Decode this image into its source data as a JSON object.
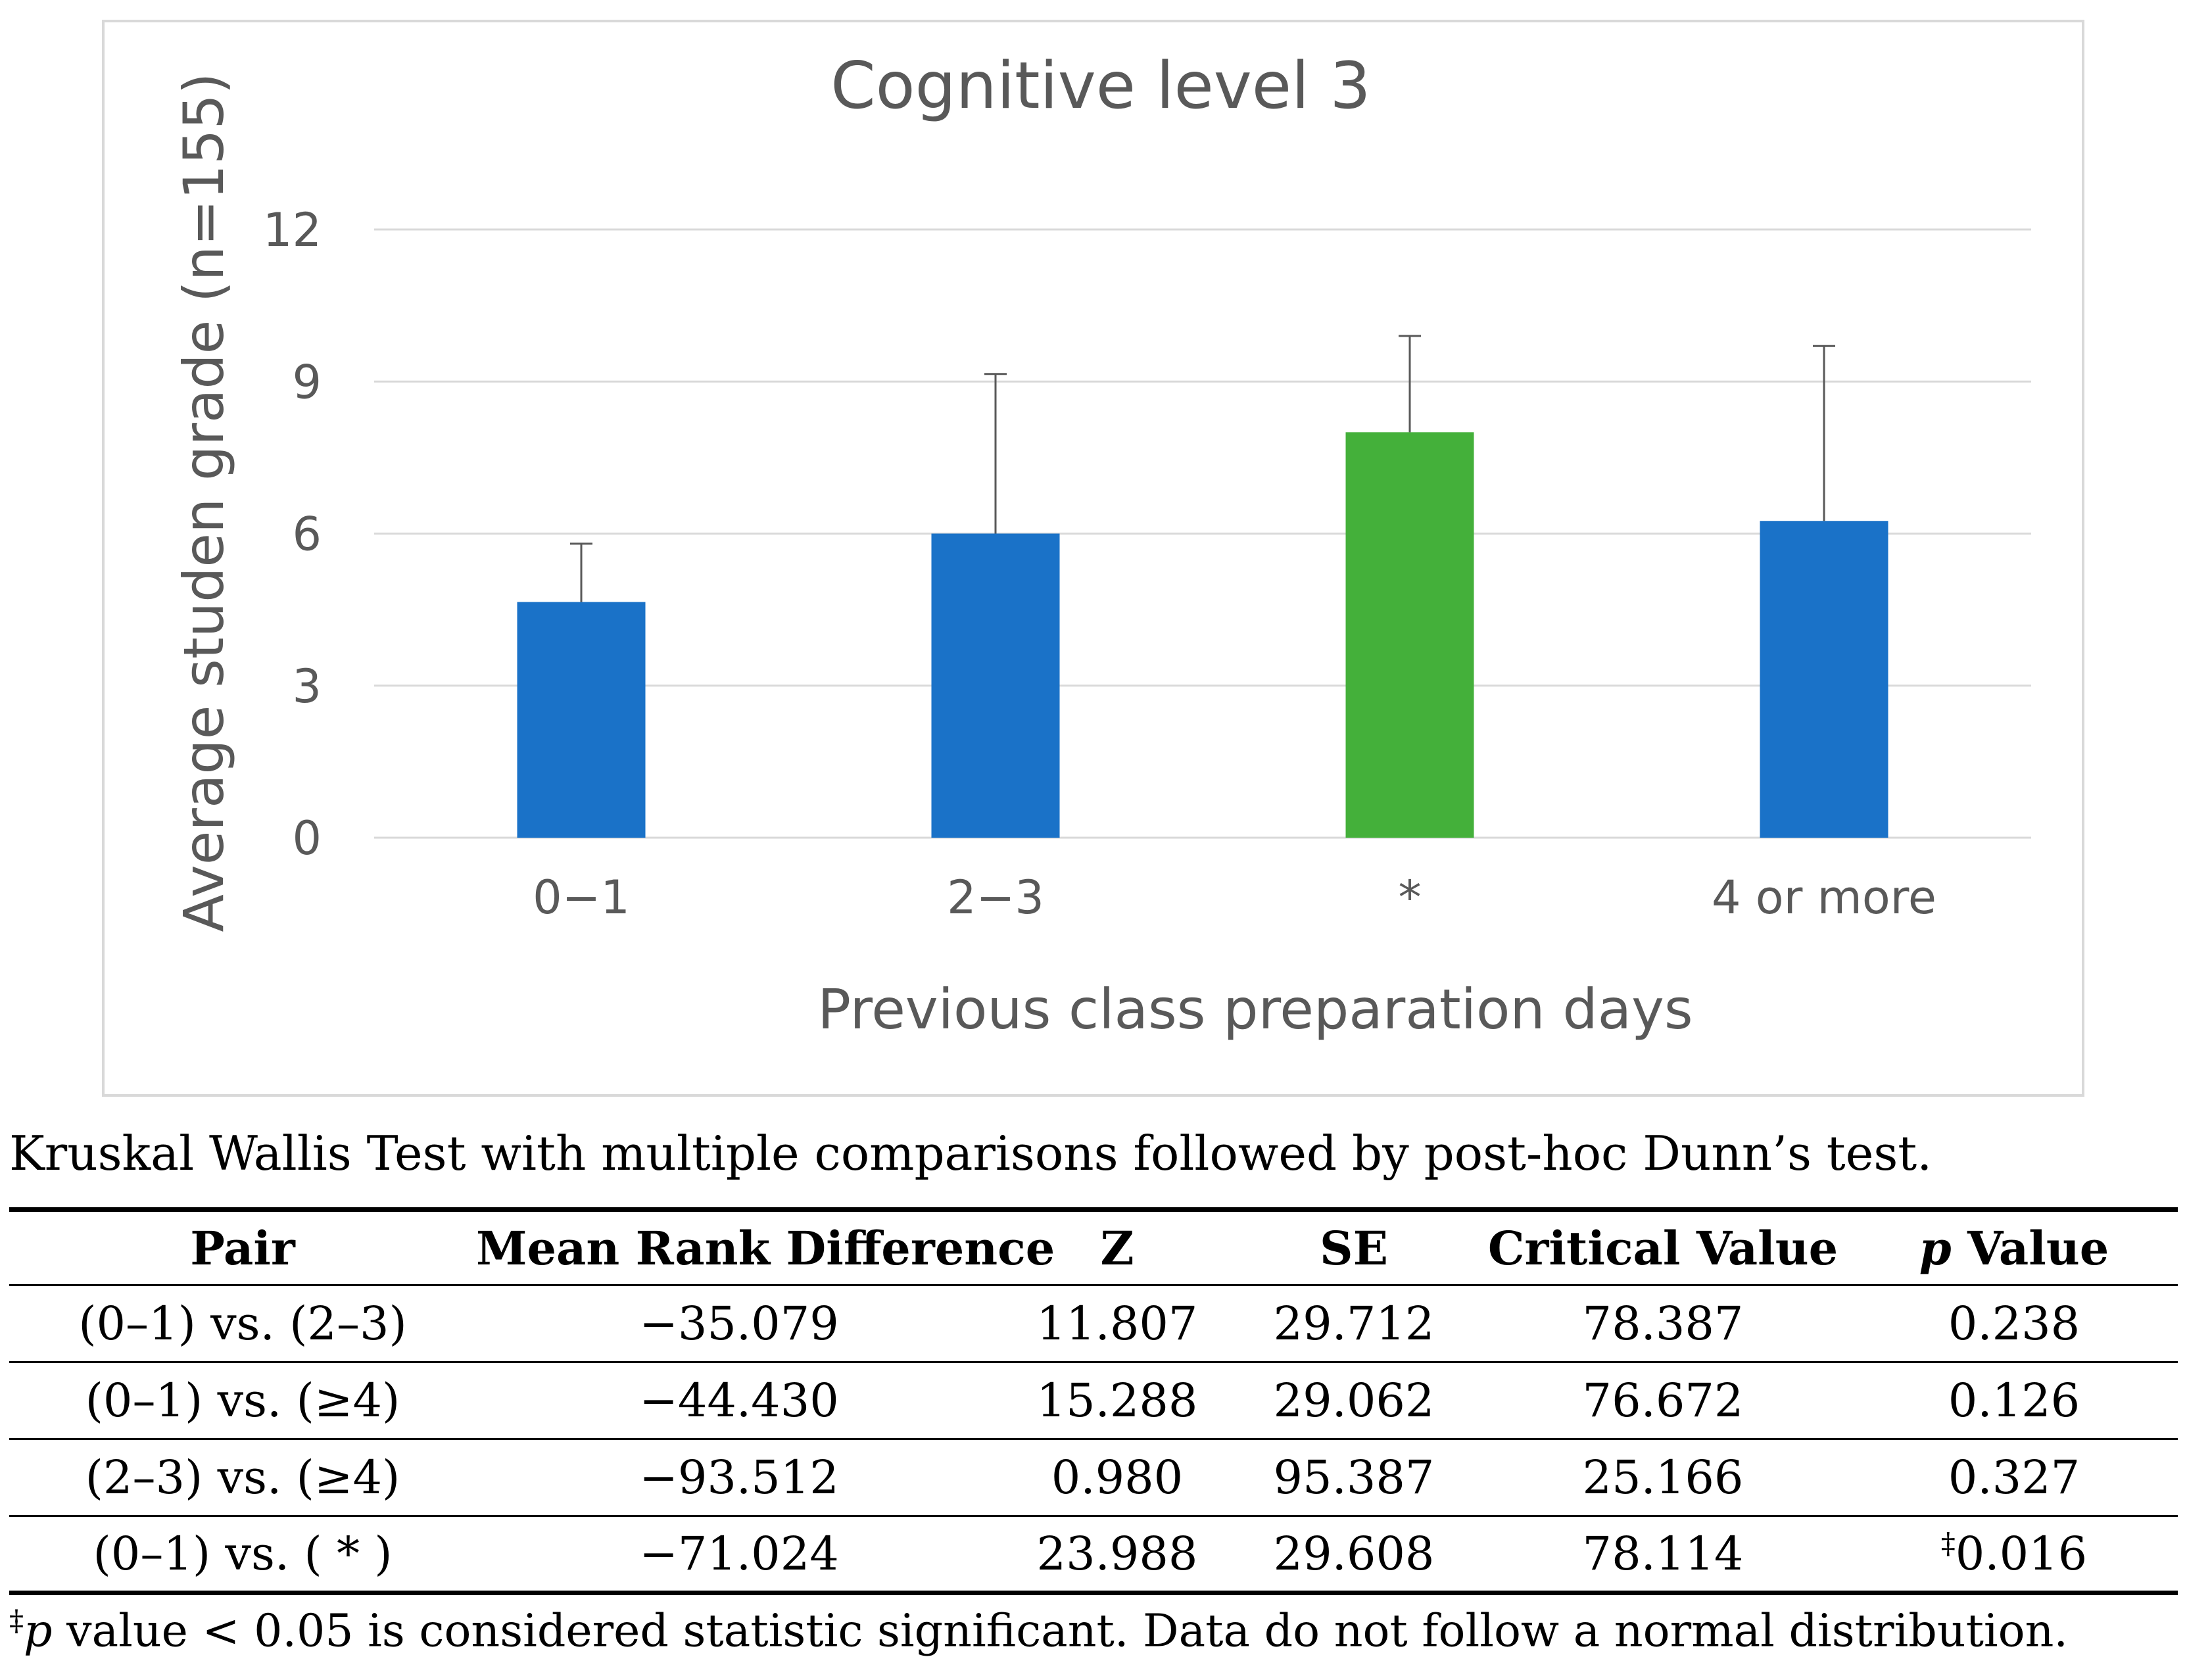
{
  "chart_data": {
    "type": "bar",
    "title": "Cognitive level 3",
    "xlabel": "Previous class preparation days",
    "ylabel": "Average studen grade  (n=155)",
    "categories": [
      "0−1",
      "2−3",
      "*",
      "4 or more"
    ],
    "values": [
      4.65,
      6.0,
      8.0,
      6.25
    ],
    "error_upper": [
      5.8,
      9.15,
      9.9,
      9.7
    ],
    "bar_colors": [
      "#1a72c8",
      "#1a72c8",
      "#44b03a",
      "#1a72c8"
    ],
    "ylim": [
      0,
      12
    ],
    "yticks": [
      0,
      3,
      6,
      9,
      12
    ],
    "grid": true
  },
  "table": {
    "caption": "Kruskal Wallis Test with multiple comparisons followed by post-hoc Dunn’s test.",
    "headers": {
      "pair": "Pair",
      "mrd": "Mean Rank Difference",
      "z": "Z",
      "se": "SE",
      "cv": "Critical Value",
      "p_italic": "p",
      "p_rest": " Value"
    },
    "rows": [
      {
        "pair": "(0–1) vs. (2–3)",
        "mrd": "−35.079",
        "z": "11.807",
        "se": "29.712",
        "cv": "78.387",
        "mark": "",
        "p": "0.238"
      },
      {
        "pair": "(0–1) vs. (≥4)",
        "mrd": "−44.430",
        "z": "15.288",
        "se": "29.062",
        "cv": "76.672",
        "mark": "",
        "p": "0.126"
      },
      {
        "pair": "(2–3) vs. (≥4)",
        "mrd": "−93.512",
        "z": "0.980",
        "se": "95.387",
        "cv": "25.166",
        "mark": "",
        "p": "0.327"
      },
      {
        "pair": "(0–1) vs. ( * )",
        "mrd": "−71.024",
        "z": "23.988",
        "se": "29.608",
        "cv": "78.114",
        "mark": "‡",
        "p": "0.016"
      }
    ],
    "footnote": {
      "mark": "‡",
      "p": "p",
      "text": " value < 0.05 is considered statistic significant. Data do not follow a normal distribution."
    }
  }
}
